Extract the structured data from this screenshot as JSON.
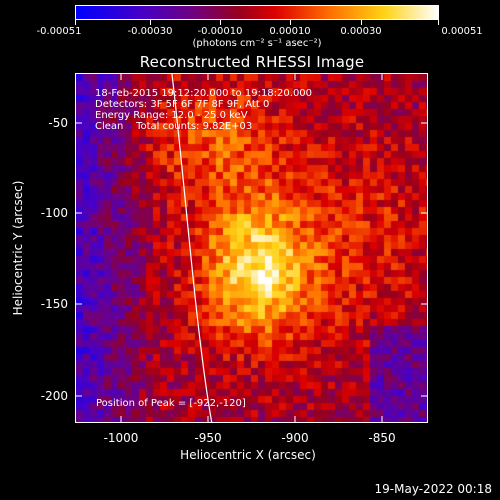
{
  "colorbar": {
    "tick_labels": [
      "-0.00051",
      "-0.00030",
      "-0.00010",
      "0.00010",
      "0.00030",
      "0.00051"
    ],
    "unit_label": "(photons cm⁻² s⁻¹ asec⁻²)"
  },
  "title": "Reconstructed RHESSI Image",
  "info": {
    "time_range": "18-Feb-2015 19:12:20.000 to 19:18:20.000",
    "detectors": "Detectors: 3F 5F 6F 7F 8F 9F, Att 0",
    "energy": "Energy Range: 12.0 - 25.0 keV",
    "clean": "Clean    Total counts: 9.82E+03",
    "peak": "Position of Peak = [-922,-120]"
  },
  "axes": {
    "xlabel": "Heliocentric X (arcsec)",
    "ylabel": "Heliocentric Y (arcsec)",
    "xticks": [
      "-1000",
      "-950",
      "-900",
      "-850"
    ],
    "yticks": [
      "-50",
      "-100",
      "-150",
      "-200"
    ]
  },
  "timestamp": "19-May-2022 00:18",
  "colors": {
    "foreground": "#ffffff",
    "background": "#000000"
  }
}
